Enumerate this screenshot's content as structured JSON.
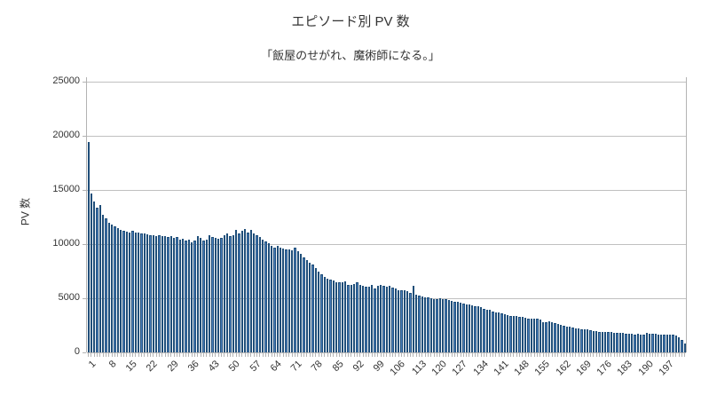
{
  "chart": {
    "title": "エピソード別 PV 数",
    "subtitle": "「飯屋のせがれ、魔術師になる。」",
    "y_axis_title": "PV 数"
  },
  "chart_data": {
    "type": "bar",
    "title": "エピソード別 PV 数",
    "subtitle": "「飯屋のせがれ、魔術師になる。」",
    "xlabel": "",
    "ylabel": "PV 数",
    "ylim": [
      0,
      25000
    ],
    "y_ticks": [
      0,
      5000,
      10000,
      15000,
      20000,
      25000
    ],
    "grid": true,
    "legend": false,
    "x_tick_step": 7,
    "x_tick_labels": [
      "1",
      "8",
      "15",
      "22",
      "29",
      "36",
      "43",
      "50",
      "57",
      "64",
      "71",
      "78",
      "85",
      "92",
      "99",
      "106",
      "113",
      "120",
      "127",
      "134",
      "141",
      "148",
      "155",
      "162",
      "169",
      "176",
      "183",
      "190",
      "197"
    ],
    "bar_color": "#4a7ebb",
    "bar_border_color": "#1f4e79",
    "categories": [
      1,
      2,
      3,
      4,
      5,
      6,
      7,
      8,
      9,
      10,
      11,
      12,
      13,
      14,
      15,
      16,
      17,
      18,
      19,
      20,
      21,
      22,
      23,
      24,
      25,
      26,
      27,
      28,
      29,
      30,
      31,
      32,
      33,
      34,
      35,
      36,
      37,
      38,
      39,
      40,
      41,
      42,
      43,
      44,
      45,
      46,
      47,
      48,
      49,
      50,
      51,
      52,
      53,
      54,
      55,
      56,
      57,
      58,
      59,
      60,
      61,
      62,
      63,
      64,
      65,
      66,
      67,
      68,
      69,
      70,
      71,
      72,
      73,
      74,
      75,
      76,
      77,
      78,
      79,
      80,
      81,
      82,
      83,
      84,
      85,
      86,
      87,
      88,
      89,
      90,
      91,
      92,
      93,
      94,
      95,
      96,
      97,
      98,
      99,
      100,
      101,
      102,
      103,
      104,
      105,
      106,
      107,
      108,
      109,
      110,
      111,
      112,
      113,
      114,
      115,
      116,
      117,
      118,
      119,
      120,
      121,
      122,
      123,
      124,
      125,
      126,
      127,
      128,
      129,
      130,
      131,
      132,
      133,
      134,
      135,
      136,
      137,
      138,
      139,
      140,
      141,
      142,
      143,
      144,
      145,
      146,
      147,
      148,
      149,
      150,
      151,
      152,
      153,
      154,
      155,
      156,
      157,
      158,
      159,
      160,
      161,
      162,
      163,
      164,
      165,
      166,
      167,
      168,
      169,
      170,
      171,
      172,
      173,
      174,
      175,
      176,
      177,
      178,
      179,
      180,
      181,
      182,
      183,
      184,
      185,
      186,
      187,
      188,
      189,
      190,
      191,
      192,
      193,
      194,
      195,
      196,
      197,
      198,
      199,
      200,
      201,
      202,
      203
    ],
    "values": [
      19400,
      14700,
      13900,
      13400,
      13600,
      12700,
      12350,
      12000,
      11800,
      11600,
      11450,
      11300,
      11200,
      11150,
      11100,
      11250,
      11100,
      11050,
      11000,
      10950,
      10900,
      10800,
      10850,
      10750,
      10800,
      10700,
      10750,
      10650,
      10700,
      10600,
      10650,
      10400,
      10500,
      10350,
      10450,
      10150,
      10300,
      10700,
      10550,
      10350,
      10400,
      10800,
      10650,
      10550,
      10500,
      10600,
      10800,
      10950,
      10700,
      10850,
      11350,
      11000,
      11200,
      11400,
      11100,
      11300,
      11000,
      10850,
      10650,
      10450,
      10250,
      10100,
      9850,
      9650,
      9800,
      9700,
      9600,
      9550,
      9500,
      9400,
      9650,
      9350,
      9100,
      8800,
      8550,
      8300,
      8100,
      7800,
      7500,
      7200,
      7000,
      6800,
      6700,
      6600,
      6500,
      6450,
      6500,
      6550,
      6250,
      6250,
      6300,
      6450,
      6250,
      6150,
      6050,
      6050,
      6250,
      5900,
      6150,
      6200,
      6150,
      6050,
      6150,
      5950,
      5900,
      5750,
      5700,
      5750,
      5650,
      5500,
      6150,
      5350,
      5250,
      5150,
      5100,
      5050,
      5000,
      4950,
      4950,
      5000,
      4950,
      4900,
      4850,
      4750,
      4700,
      4650,
      4600,
      4500,
      4450,
      4400,
      4350,
      4300,
      4250,
      4150,
      4050,
      3950,
      3900,
      3800,
      3700,
      3650,
      3600,
      3500,
      3450,
      3400,
      3400,
      3350,
      3300,
      3250,
      3200,
      3150,
      3100,
      3150,
      3100,
      3000,
      2800,
      2750,
      2850,
      2750,
      2700,
      2650,
      2550,
      2500,
      2400,
      2350,
      2300,
      2250,
      2200,
      2150,
      2150,
      2100,
      2050,
      2000,
      1950,
      1900,
      1900,
      1850,
      1900,
      1850,
      1800,
      1780,
      1820,
      1780,
      1750,
      1720,
      1700,
      1680,
      1700,
      1680,
      1650,
      1800,
      1750,
      1720,
      1700,
      1680,
      1660,
      1650,
      1640,
      1630,
      1600,
      1550,
      1400,
      1150,
      800
    ]
  }
}
